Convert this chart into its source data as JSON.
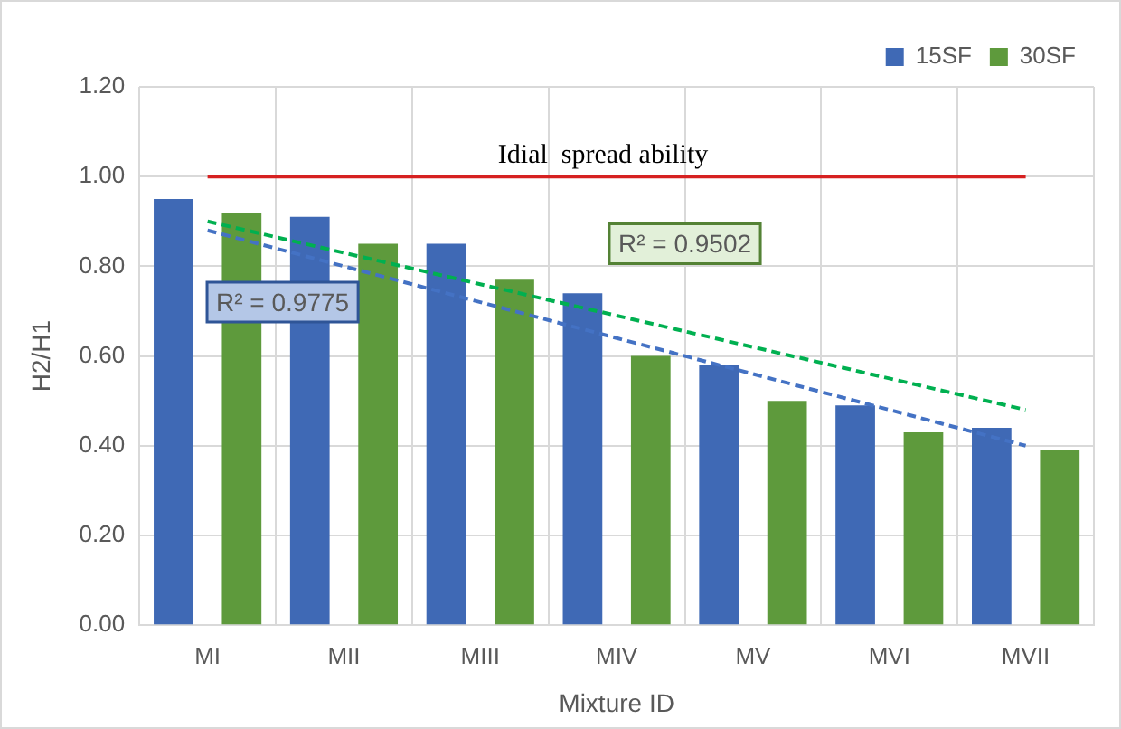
{
  "chart_data": {
    "type": "bar",
    "xlabel": "Mixture ID",
    "ylabel": "H2/H1",
    "categories": [
      "MI",
      "MII",
      "MIII",
      "MIV",
      "MV",
      "MVI",
      "MVII"
    ],
    "series": [
      {
        "name": "15SF",
        "color": "#3f69b5",
        "values": [
          0.95,
          0.91,
          0.85,
          0.74,
          0.58,
          0.49,
          0.44
        ]
      },
      {
        "name": "30SF",
        "color": "#5e9a3c",
        "values": [
          0.92,
          0.85,
          0.77,
          0.6,
          0.5,
          0.43,
          0.39
        ]
      },
      {
        "type": "line",
        "color": "#4472c4",
        "line_style": "dashed",
        "marker": "none",
        "values": [
          0.88,
          0.8,
          0.72,
          0.64,
          0.56,
          0.48,
          0.4
        ]
      },
      {
        "type": "line",
        "color": "#00b050",
        "line_style": "dashed",
        "marker": "none",
        "values": [
          0.9,
          0.83,
          0.76,
          0.69,
          0.62,
          0.55,
          0.48
        ]
      }
    ],
    "ylim": [
      0,
      1.2
    ],
    "yticks": [
      {
        "value": 0,
        "label": "0.00"
      },
      {
        "value": 0.2,
        "label": "0.20"
      },
      {
        "value": 0.4,
        "label": "0.40"
      },
      {
        "value": 0.6,
        "label": "0.60"
      },
      {
        "value": 0.8,
        "label": "0.80"
      },
      {
        "value": 1,
        "label": "1.00"
      },
      {
        "value": 1.2,
        "label": "1.20"
      }
    ],
    "ref_lines": [
      {
        "axis": "y",
        "value": 1,
        "label": "Idial  spread ability",
        "color": "#d62020"
      }
    ],
    "annotations": [
      "R² = 0.9775",
      "R² = 0.9502"
    ],
    "grid": true,
    "legend": "top right"
  }
}
